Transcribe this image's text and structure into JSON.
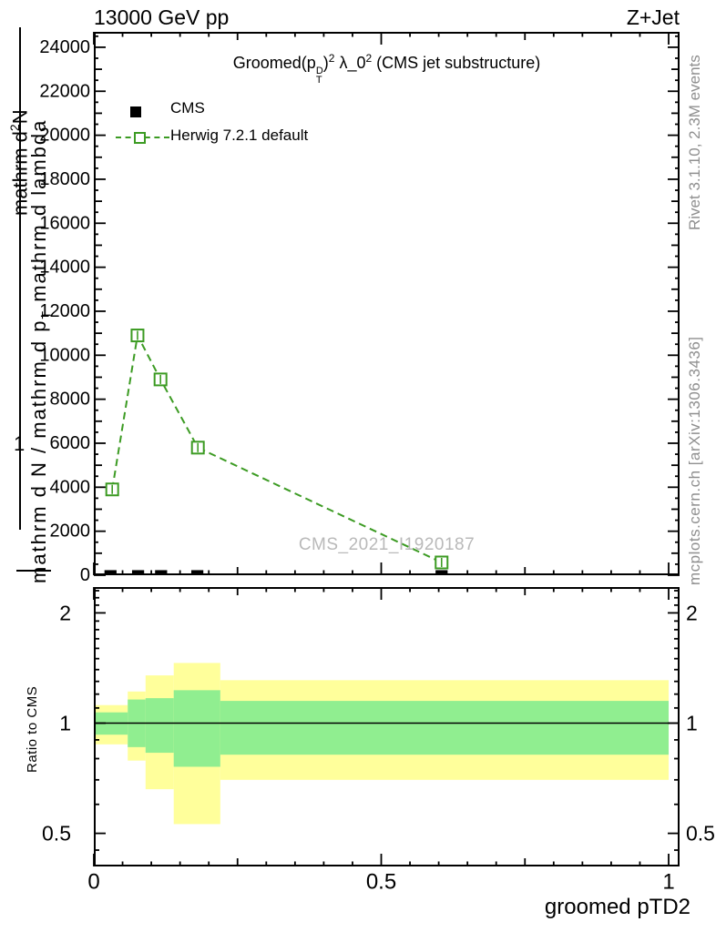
{
  "header": {
    "left": "13000 GeV pp",
    "right": "Z+Jet"
  },
  "title": {
    "prefix": "Groomed(p",
    "p_sup": "D",
    "p_sub": "T",
    "close_paren": ")",
    "sq1": "2",
    "lambda": " λ_0",
    "sq2": "2",
    "suffix": " (CMS jet substructure)"
  },
  "legend": {
    "items": [
      {
        "label": "CMS"
      },
      {
        "label": "Herwig 7.2.1 default"
      }
    ]
  },
  "watermark": "CMS_2021_I1920187",
  "side_notes": {
    "top_rotated": "Rivet 3.1.10,  2.3M events",
    "bottom_rotated": "mcplots.cern.ch [arXiv:1306.3436]"
  },
  "y_axis_title": {
    "frac_numerator": {
      "pre": "mathrm d",
      "sup": "2",
      "post": "N"
    },
    "one": "1",
    "denominator": {
      "pre": "mathrm d N / mathrm d p",
      "sub": "T",
      "post": " mathrm d lambda"
    }
  },
  "ratio_axis": {
    "label": "Ratio to CMS"
  },
  "x_axis": {
    "label": "groomed pTD2"
  },
  "chart_data": {
    "type": "line",
    "title": "Groomed (p_T^D)^2 λ_0^2 (CMS jet substructure)",
    "xlabel": "groomed pTD2",
    "x_range": [
      0,
      1.019
    ],
    "x_major_ticks": [
      0,
      0.5,
      1
    ],
    "x_medium_ticks": [
      0.25,
      0.75
    ],
    "x_minor_step": 0.05,
    "main_panel": {
      "y_range": [
        0,
        24700
      ],
      "y_major_ticks": [
        0,
        2000,
        4000,
        6000,
        8000,
        10000,
        12000,
        14000,
        16000,
        18000,
        20000,
        22000,
        24000
      ],
      "y_medium_tick_step": 2000,
      "y_minor_tick_step": 1000,
      "grid": false
    },
    "series": [
      {
        "name": "CMS",
        "style": "filled_black_boxes",
        "color": "#000000",
        "box_half_width": 0.0105,
        "points": [
          {
            "x": 0.029,
            "y": 115,
            "half_height": 115
          },
          {
            "x": 0.077,
            "y": 115,
            "half_height": 115
          },
          {
            "x": 0.117,
            "y": 115,
            "half_height": 115
          },
          {
            "x": 0.18,
            "y": 115,
            "half_height": 115
          },
          {
            "x": 0.605,
            "y": 115,
            "half_height": 115
          }
        ]
      },
      {
        "name": "Herwig 7.2.1 default",
        "style": "dashed_line_open_squares",
        "color": "#3c9b23",
        "points": [
          {
            "x": 0.032,
            "y": 3900
          },
          {
            "x": 0.076,
            "y": 10900
          },
          {
            "x": 0.116,
            "y": 8900
          },
          {
            "x": 0.181,
            "y": 5800
          },
          {
            "x": 0.605,
            "y": 580
          }
        ]
      }
    ],
    "ratio_panel": {
      "label": "Ratio to CMS",
      "scale": "log",
      "y_range": [
        0.406,
        2.353
      ],
      "y_major_ticks": [
        0.5,
        1,
        2
      ],
      "y_minor_ticks": [
        0.45,
        0.6,
        0.7,
        0.8,
        0.9,
        1.1,
        1.2,
        1.3,
        1.4,
        1.5,
        1.6,
        1.7,
        1.8,
        1.9,
        2.1,
        2.2,
        2.3
      ],
      "reference_line": 1.0,
      "colors": {
        "outer_band": "#ffff9b",
        "inner_band": "#90ee90"
      },
      "bins": [
        {
          "x0": 0.0,
          "x1": 0.059,
          "outer": [
            0.875,
            1.12
          ],
          "inner": [
            0.93,
            1.07
          ]
        },
        {
          "x0": 0.059,
          "x1": 0.09,
          "outer": [
            0.79,
            1.22
          ],
          "inner": [
            0.86,
            1.16
          ]
        },
        {
          "x0": 0.09,
          "x1": 0.139,
          "outer": [
            0.66,
            1.35
          ],
          "inner": [
            0.83,
            1.17
          ]
        },
        {
          "x0": 0.139,
          "x1": 0.22,
          "outer": [
            0.53,
            1.46
          ],
          "inner": [
            0.76,
            1.23
          ]
        },
        {
          "x0": 0.22,
          "x1": 1.0,
          "outer": [
            0.7,
            1.31
          ],
          "inner": [
            0.82,
            1.15
          ]
        }
      ]
    }
  }
}
